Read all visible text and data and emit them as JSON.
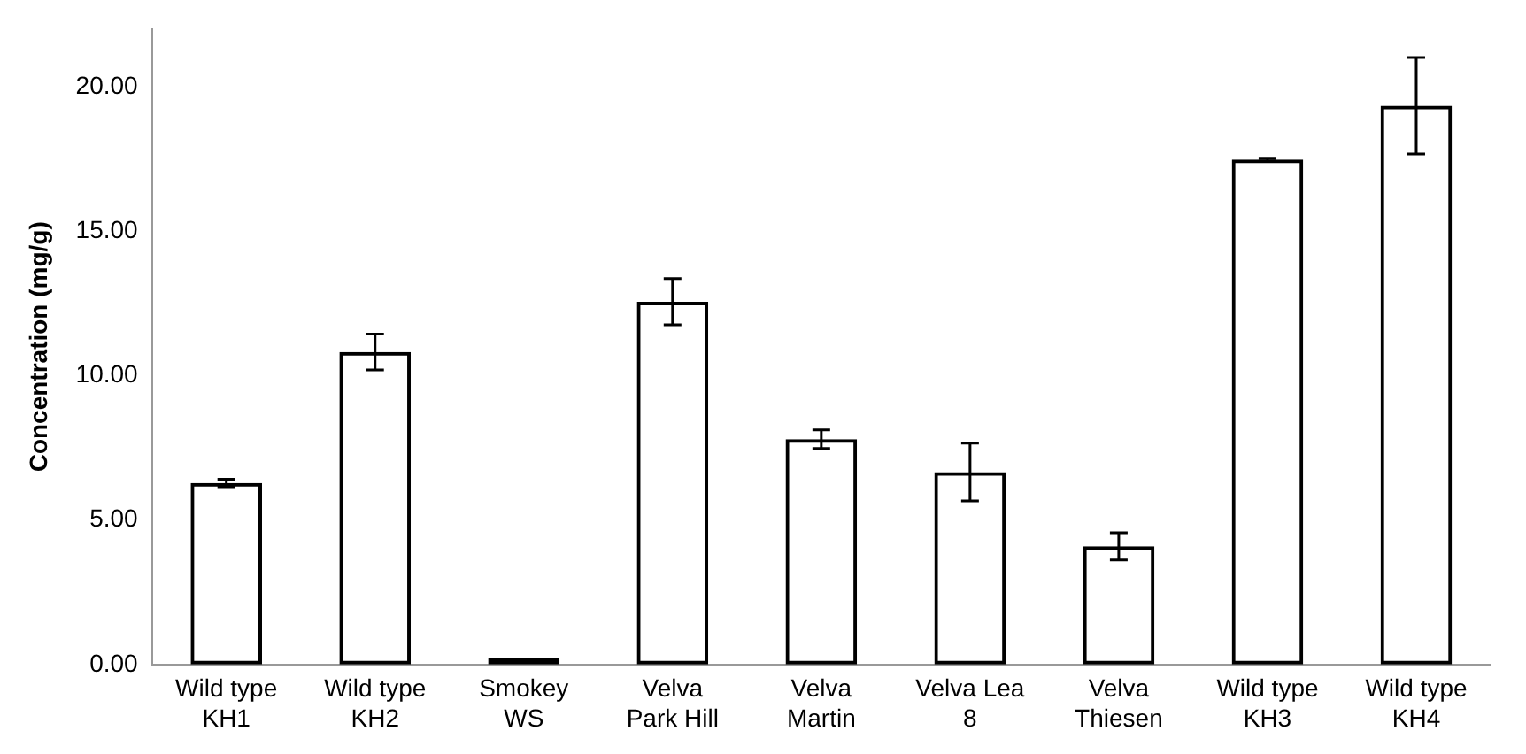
{
  "chart_data": {
    "type": "bar",
    "ylabel": "Concentration (mg/g)",
    "categories": [
      "Wild type KH1",
      "Wild type KH2",
      "Smokey WS",
      "Velva Park Hill",
      "Velva Martin",
      "Velva Lea 8",
      "Velva Thiesen",
      "Wild type KH3",
      "Wild type KH4"
    ],
    "values": [
      6.28,
      10.82,
      0.21,
      12.56,
      7.8,
      6.66,
      4.09,
      17.48,
      19.34
    ],
    "errors": [
      0.13,
      0.62,
      null,
      0.8,
      0.32,
      1.0,
      0.47,
      0.05,
      1.67
    ],
    "color": "#000000",
    "ylim": [
      0,
      22
    ],
    "yticks": [
      {
        "value": 0,
        "label": "0.00"
      },
      {
        "value": 5,
        "label": "5.00"
      },
      {
        "value": 10,
        "label": "10.00"
      },
      {
        "value": 15,
        "label": "15.00"
      },
      {
        "value": 20,
        "label": "20.00"
      }
    ],
    "grid": false,
    "legend": false
  }
}
